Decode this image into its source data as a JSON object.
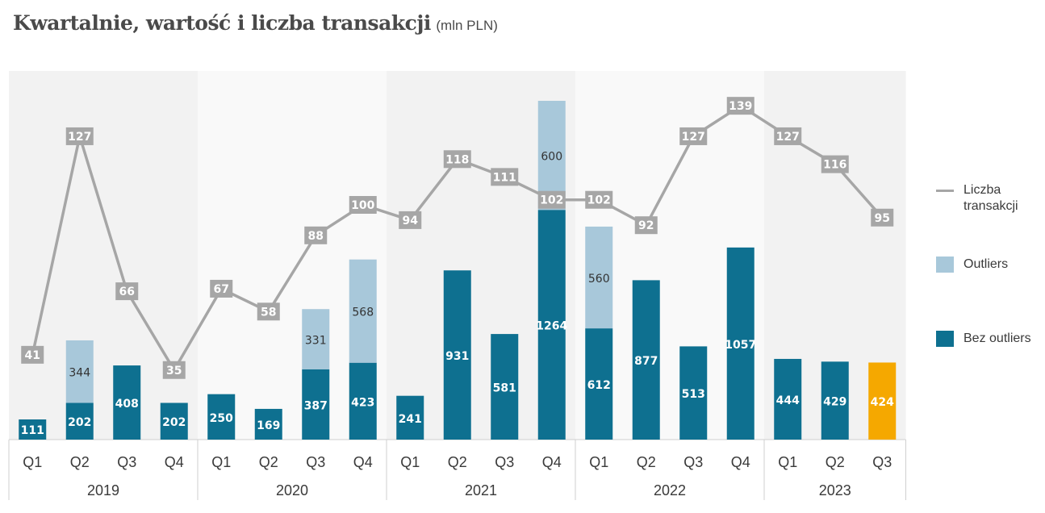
{
  "header": {
    "title": "Kwartalnie, wartość i liczba transakcji",
    "subtitle": "(mln PLN)"
  },
  "legend": {
    "line_label": "Liczba transakcji",
    "outliers_label": "Outliers",
    "base_label": "Bez outliers"
  },
  "colors": {
    "base": "#0e7090",
    "outliers": "#a8c8da",
    "highlight": "#f5a800",
    "line": "#a6a6a6",
    "band_dark": "#f2f2f2",
    "band_light": "#f9f9f9"
  },
  "chart_data": {
    "type": "bar",
    "stacked": true,
    "title": "Kwartalnie, wartość i liczba transakcji",
    "subtitle": "(mln PLN)",
    "categories": [
      "Q1",
      "Q2",
      "Q3",
      "Q4",
      "Q1",
      "Q2",
      "Q3",
      "Q4",
      "Q1",
      "Q2",
      "Q3",
      "Q4",
      "Q1",
      "Q2",
      "Q3",
      "Q4",
      "Q1",
      "Q2",
      "Q3"
    ],
    "groups": [
      {
        "label": "2019",
        "count": 4
      },
      {
        "label": "2020",
        "count": 4
      },
      {
        "label": "2021",
        "count": 4
      },
      {
        "label": "2022",
        "count": 4
      },
      {
        "label": "2023",
        "count": 3
      }
    ],
    "series": [
      {
        "name": "Bez outliers",
        "kind": "bar",
        "values": [
          111,
          202,
          408,
          202,
          250,
          169,
          387,
          423,
          241,
          931,
          581,
          1264,
          612,
          877,
          513,
          1057,
          444,
          429,
          424
        ]
      },
      {
        "name": "Outliers",
        "kind": "bar",
        "values": [
          null,
          344,
          null,
          null,
          null,
          null,
          331,
          568,
          null,
          null,
          null,
          600,
          560,
          null,
          null,
          null,
          null,
          null,
          null
        ]
      },
      {
        "name": "Liczba transakcji",
        "kind": "line",
        "values": [
          41,
          127,
          66,
          35,
          67,
          58,
          88,
          100,
          94,
          118,
          111,
          102,
          102,
          92,
          127,
          139,
          127,
          116,
          95
        ]
      }
    ],
    "highlight_index": 18,
    "bar_ylim": [
      0,
      1900
    ],
    "line_ylim": [
      0,
      145
    ],
    "grid": false,
    "legend_position": "right"
  }
}
